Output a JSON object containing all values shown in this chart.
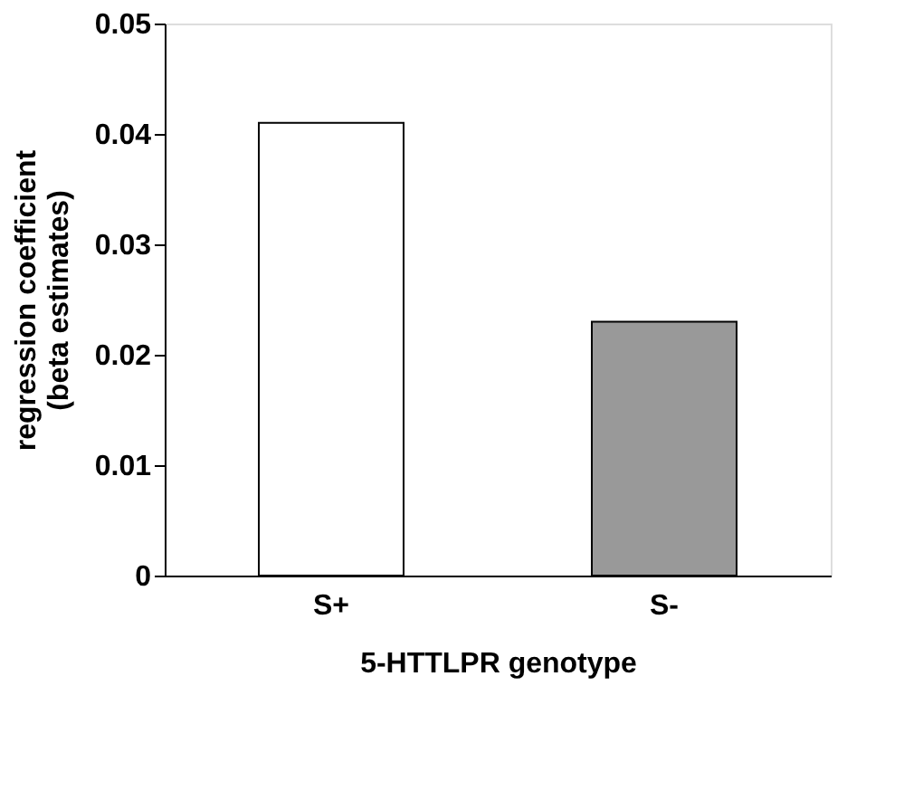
{
  "chart_data": {
    "type": "bar",
    "categories": [
      "S+",
      "S-"
    ],
    "values": [
      0.041,
      0.023
    ],
    "colors": [
      "#ffffff",
      "#999999"
    ],
    "xlabel": "5-HTTLPR genotype",
    "ylabel": "regression coefficient\n(beta estimates)",
    "ylim": [
      0,
      0.05
    ],
    "yticks": [
      0,
      0.01,
      0.02,
      0.03,
      0.04,
      0.05
    ],
    "grid": false
  }
}
